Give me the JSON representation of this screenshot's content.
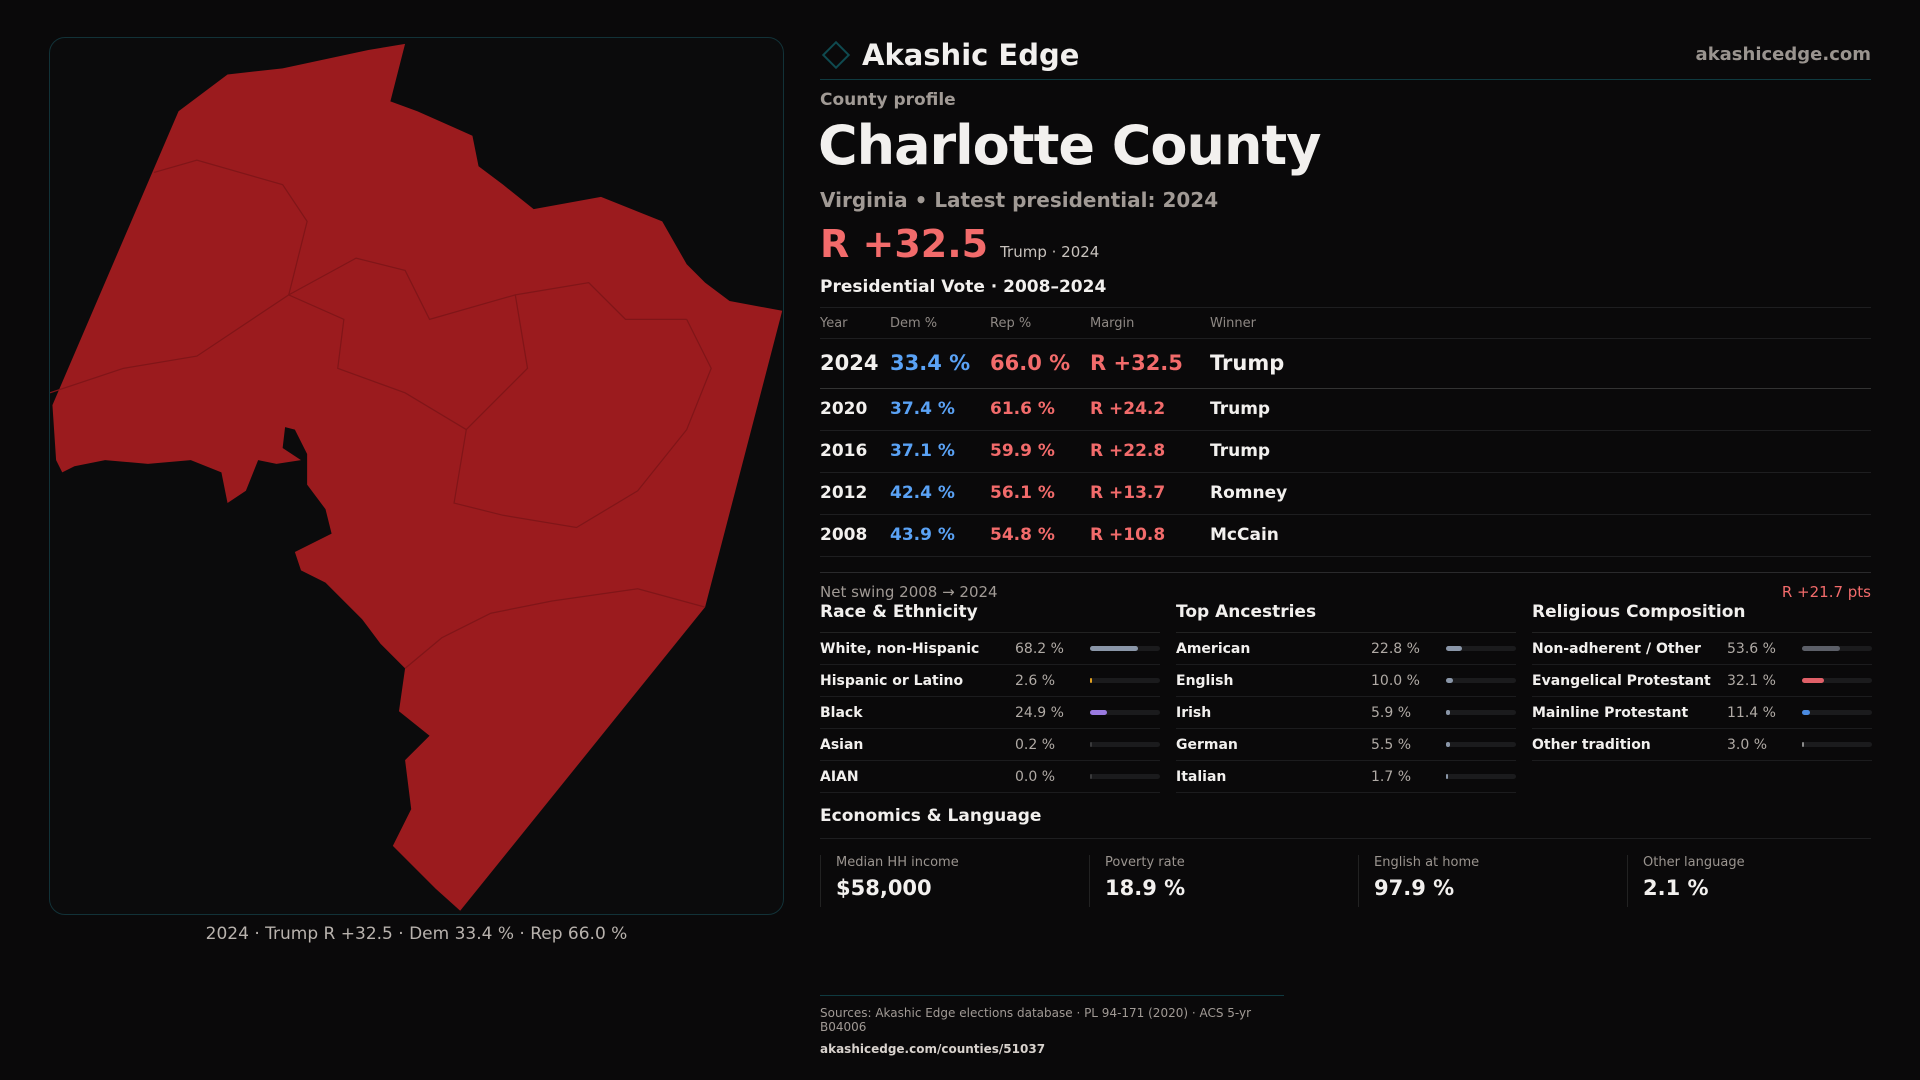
{
  "brand": {
    "name": "Akashic Edge",
    "site": "akashicedge.com",
    "logo_icon": "diamond-icon"
  },
  "profile": {
    "kicker": "County profile",
    "title": "Charlotte County",
    "subtitle": "Virginia • Latest presidential: 2024",
    "margin": "R +32.5",
    "margin_note": "Trump · 2024"
  },
  "map": {
    "caption": "2024 · Trump R +32.5 · Dem 33.4 % · Rep 66.0 %",
    "fill": "#9b1b1e"
  },
  "vote": {
    "heading": "Presidential Vote · 2008–2024",
    "columns": [
      "Year",
      "Dem %",
      "Rep %",
      "Margin",
      "Winner"
    ],
    "rows": [
      {
        "year": "2024",
        "dem": "33.4 %",
        "rep": "66.0 %",
        "margin": "R +32.5",
        "winner": "Trump"
      },
      {
        "year": "2020",
        "dem": "37.4 %",
        "rep": "61.6 %",
        "margin": "R +24.2",
        "winner": "Trump"
      },
      {
        "year": "2016",
        "dem": "37.1 %",
        "rep": "59.9 %",
        "margin": "R +22.8",
        "winner": "Trump"
      },
      {
        "year": "2012",
        "dem": "42.4 %",
        "rep": "56.1 %",
        "margin": "R +13.7",
        "winner": "Romney"
      },
      {
        "year": "2008",
        "dem": "43.9 %",
        "rep": "54.8 %",
        "margin": "R +10.8",
        "winner": "McCain"
      }
    ],
    "swing_label": "Net swing 2008 → 2024",
    "swing_value": "R +21.7 pts"
  },
  "sections": [
    {
      "title": "Race & Ethnicity",
      "items": [
        {
          "label": "White, non-Hispanic",
          "value": "68.2 %",
          "pct": 68.2,
          "color": "#8a96a8"
        },
        {
          "label": "Hispanic or Latino",
          "value": "2.6 %",
          "pct": 2.6,
          "color": "#e0a020"
        },
        {
          "label": "Black",
          "value": "24.9 %",
          "pct": 24.9,
          "color": "#9a7ae0"
        },
        {
          "label": "Asian",
          "value": "0.2 %",
          "pct": 0.2,
          "color": "#3a3a3c"
        },
        {
          "label": "AIAN",
          "value": "0.0 %",
          "pct": 0,
          "color": "#3a3a3c"
        }
      ]
    },
    {
      "title": "Top Ancestries",
      "items": [
        {
          "label": "American",
          "value": "22.8 %",
          "pct": 22.8,
          "color": "#8a96a8"
        },
        {
          "label": "English",
          "value": "10.0 %",
          "pct": 10,
          "color": "#8a96a8"
        },
        {
          "label": "Irish",
          "value": "5.9 %",
          "pct": 5.9,
          "color": "#8a96a8"
        },
        {
          "label": "German",
          "value": "5.5 %",
          "pct": 5.5,
          "color": "#8a96a8"
        },
        {
          "label": "Italian",
          "value": "1.7 %",
          "pct": 1.7,
          "color": "#8a96a8"
        }
      ]
    },
    {
      "title": "Religious Composition",
      "items": [
        {
          "label": "Non-adherent / Other",
          "value": "53.6 %",
          "pct": 53.6,
          "color": "#5c5f68"
        },
        {
          "label": "Evangelical Protestant",
          "value": "32.1 %",
          "pct": 32.1,
          "color": "#e06068"
        },
        {
          "label": "Mainline Protestant",
          "value": "11.4 %",
          "pct": 11.4,
          "color": "#4a8ae0"
        },
        {
          "label": "Other tradition",
          "value": "3.0 %",
          "pct": 3,
          "color": "#8a8a8a"
        }
      ]
    }
  ],
  "econ": {
    "heading": "Economics & Language",
    "cards": [
      {
        "label": "Median HH income",
        "value": "$58,000"
      },
      {
        "label": "Poverty rate",
        "value": "18.9 %"
      },
      {
        "label": "English at home",
        "value": "97.9 %"
      },
      {
        "label": "Other language",
        "value": "2.1 %"
      }
    ]
  },
  "footer": {
    "sources": "Sources: Akashic Edge elections database · PL 94-171 (2020) · ACS 5-yr B04006",
    "url": "akashicedge.com/counties/51037"
  }
}
